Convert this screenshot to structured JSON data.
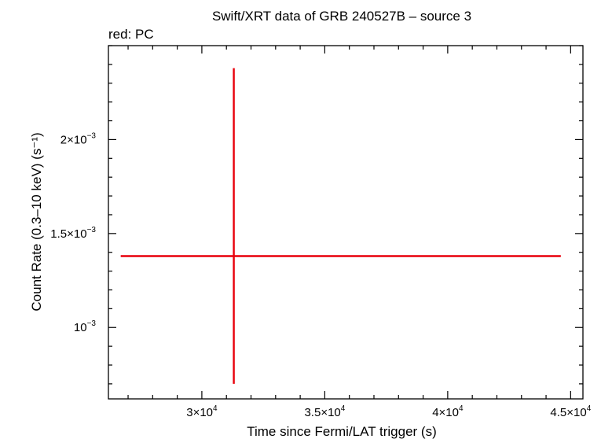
{
  "chart_data": {
    "type": "scatter",
    "title": "Swift/XRT data of GRB 240527B – source 3",
    "subtitle": "red: PC",
    "xlabel": "Time since Fermi/LAT trigger (s)",
    "ylabel": "Count Rate (0.3–10 keV) (s⁻¹)",
    "xlim": [
      26200,
      45500
    ],
    "ylim": [
      0.00062,
      0.0025
    ],
    "x_ticks": [
      {
        "value": 30000,
        "mant": "3",
        "exp": "4"
      },
      {
        "value": 35000,
        "mant": "3.5",
        "exp": "4"
      },
      {
        "value": 40000,
        "mant": "4",
        "exp": "4"
      },
      {
        "value": 45000,
        "mant": "4.5",
        "exp": "4"
      }
    ],
    "x_minor_step": 1000,
    "y_ticks": [
      {
        "value": 0.001,
        "mant": "10",
        "exp": "−3",
        "times": false
      },
      {
        "value": 0.0015,
        "mant": "1.5",
        "exp": "−3",
        "times": true
      },
      {
        "value": 0.002,
        "mant": "2",
        "exp": "−3",
        "times": true
      }
    ],
    "y_minor_step": 0.0001,
    "times_sign": "×10",
    "series": [
      {
        "name": "PC",
        "color": "#e8000b",
        "points": [
          {
            "x": 31300,
            "y": 0.00138,
            "xerr_low": 4600,
            "xerr_high": 13300,
            "yerr_low": 0.00068,
            "yerr_high": 0.001
          }
        ]
      }
    ]
  }
}
